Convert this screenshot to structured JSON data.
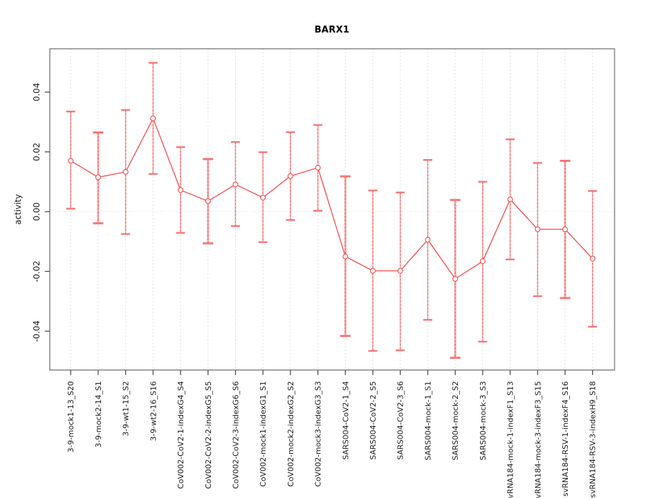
{
  "window": {
    "background": "#ffffff"
  },
  "chart_data": {
    "type": "line",
    "title": "BARX1",
    "xlabel": "",
    "ylabel": "activity",
    "ylim": [
      -0.053,
      0.0545
    ],
    "y_tick_values": [
      0.04,
      0.02,
      0.0,
      -0.02,
      -0.04
    ],
    "y_tick_labels": [
      "0.04",
      "0.02",
      "0.00",
      "-0.02",
      "-0.04"
    ],
    "legend_position": "none",
    "marker": "open-circle",
    "grid": {
      "vertical": "light-dashed-at-every-category",
      "horizontal": "dotted-line-at-zero-only"
    },
    "colors": {
      "line": "#f75353",
      "marker_fill": "#ffffff",
      "errorbar_base_thick": "#f9a8a8",
      "errorbar_base_thin": "#f8a0a0",
      "errorbar_cap": "#f87575",
      "errorbar_dash_overlay": "#f55f5f",
      "box": "#8a8a8a",
      "tick": "#4a4a4a",
      "gridline": "#dcdcdc",
      "text": "#1a1a1a"
    },
    "categories": [
      "3-9-mock1-13_S20",
      "3-9-mock2-14_S1",
      "3-9-wt1-15_S2",
      "3-9-wt2-16_S16",
      "CoV002-CoV2-1-indexG4_S4",
      "CoV002-CoV2-2-indexG5_S5",
      "CoV002-CoV2-3-indexG6_S6",
      "CoV002-mock1-indexG1_S1",
      "CoV002-mock2-indexG2_S2",
      "CoV002-mock3-indexG3_S3",
      "SARS004-CoV2-1_S4",
      "SARS004-CoV2-2_S5",
      "SARS004-CoV2-3_S6",
      "SARS004-mock-1_S1",
      "SARS004-mock-2_S2",
      "SARS004-mock-3_S3",
      "svRNA184-mock-1-indexF1_S13",
      "svRNA184-mock-3-indexF3_S15",
      "svRNA184-RSV-1-indexF4_S16",
      "svRNA184-RSV-3-indexH9_S18"
    ],
    "series": [
      {
        "name": "activity",
        "values": [
          0.017,
          0.0115,
          0.0133,
          0.0312,
          0.0072,
          0.0035,
          0.0091,
          0.0047,
          0.0119,
          0.0147,
          -0.015,
          -0.0198,
          -0.0198,
          -0.0094,
          -0.0225,
          -0.0166,
          0.0041,
          -0.0059,
          -0.0059,
          -0.0157
        ],
        "error_lower": [
          0.001,
          -0.0039,
          -0.0075,
          0.0126,
          -0.0071,
          -0.0106,
          -0.0048,
          -0.0102,
          -0.0028,
          0.0003,
          -0.0416,
          -0.0466,
          -0.0464,
          -0.0362,
          -0.0489,
          -0.0435,
          -0.016,
          -0.0283,
          -0.0289,
          -0.0385
        ],
        "error_upper": [
          0.0335,
          0.0265,
          0.034,
          0.0498,
          0.0216,
          0.0176,
          0.0233,
          0.0199,
          0.0266,
          0.029,
          0.0118,
          0.0071,
          0.0064,
          0.0173,
          0.0039,
          0.01,
          0.0242,
          0.0163,
          0.017,
          0.0069
        ],
        "errorbar_heavy": [
          false,
          true,
          false,
          false,
          false,
          true,
          false,
          false,
          false,
          false,
          true,
          false,
          false,
          false,
          true,
          false,
          false,
          false,
          true,
          false
        ]
      }
    ]
  }
}
